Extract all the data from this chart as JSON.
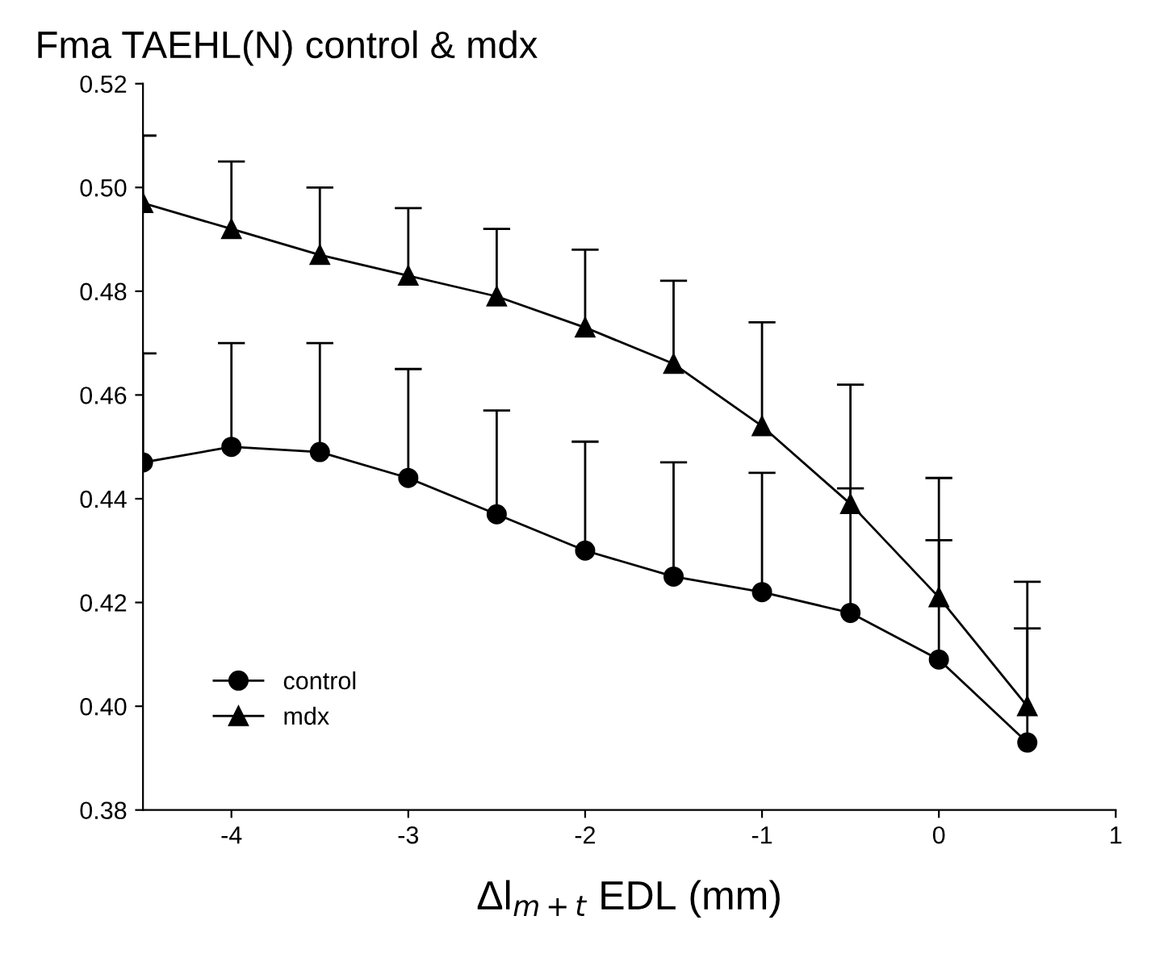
{
  "chart_data": {
    "type": "line",
    "title": "Fma TAEHL(N) control & mdx",
    "xlabel": "Δl$_{m+t}$ EDL (mm)",
    "x": [
      -4.5,
      -4,
      -3.5,
      -3,
      -2.5,
      -2,
      -1.5,
      -1,
      -0.5,
      0,
      0.5
    ],
    "series": [
      {
        "name": "control",
        "color": "#000000",
        "marker": "circle",
        "values": [
          0.447,
          0.45,
          0.449,
          0.444,
          0.437,
          0.43,
          0.425,
          0.422,
          0.418,
          0.409,
          0.393
        ],
        "errors": [
          [
            0.447,
            0.468
          ],
          [
            0.45,
            0.47
          ],
          [
            0.449,
            0.47
          ],
          [
            0.444,
            0.465
          ],
          [
            0.437,
            0.457
          ],
          [
            0.43,
            0.451
          ],
          [
            0.425,
            0.447
          ],
          [
            0.422,
            0.445
          ],
          [
            0.418,
            0.442
          ],
          [
            0.409,
            0.432
          ],
          [
            0.393,
            0.415
          ]
        ]
      },
      {
        "name": "mdx",
        "color": "#000000",
        "marker": "triangle",
        "values": [
          0.497,
          0.492,
          0.487,
          0.483,
          0.479,
          0.473,
          0.466,
          0.454,
          0.439,
          0.421,
          0.4
        ],
        "errors": [
          [
            0.497,
            0.51
          ],
          [
            0.492,
            0.505
          ],
          [
            0.487,
            0.5
          ],
          [
            0.483,
            0.496
          ],
          [
            0.479,
            0.492
          ],
          [
            0.473,
            0.488
          ],
          [
            0.466,
            0.482
          ],
          [
            0.454,
            0.474
          ],
          [
            0.439,
            0.462
          ],
          [
            0.421,
            0.444
          ],
          [
            0.4,
            0.424
          ]
        ]
      }
    ],
    "xlim": [
      -4.5,
      1
    ],
    "xticks": [
      -4,
      -3,
      -2,
      -1,
      0,
      1
    ],
    "ylim": [
      0.38,
      0.52
    ],
    "yticks": [
      0.38,
      {
        "value": 0.4,
        "label": "0.40"
      },
      0.42,
      0.44,
      0.46,
      0.48,
      {
        "value": 0.5,
        "label": "0.50"
      },
      0.52
    ],
    "grid": false,
    "legend": "bottom left",
    "line_style": "solid"
  }
}
